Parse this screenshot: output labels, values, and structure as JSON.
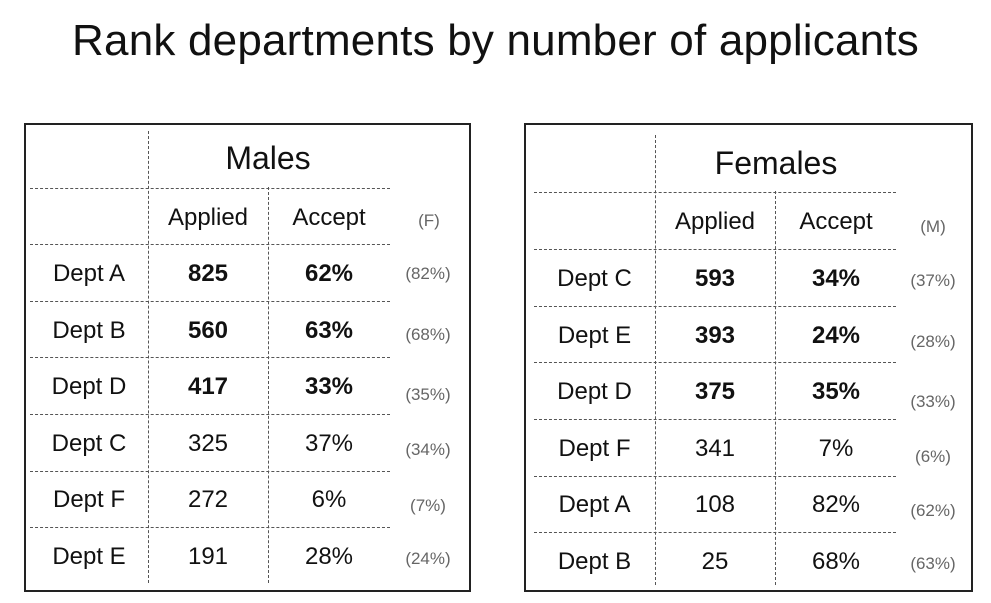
{
  "title": "Rank departments by number of applicants",
  "males": {
    "group_label": "Males",
    "col_applied": "Applied",
    "col_accept": "Accept",
    "col_other": "(F)",
    "rows": [
      {
        "dept": "Dept A",
        "applied": "825",
        "accept": "62%",
        "other": "(82%)",
        "bold": true
      },
      {
        "dept": "Dept B",
        "applied": "560",
        "accept": "63%",
        "other": "(68%)",
        "bold": true
      },
      {
        "dept": "Dept D",
        "applied": "417",
        "accept": "33%",
        "other": "(35%)",
        "bold": true
      },
      {
        "dept": "Dept C",
        "applied": "325",
        "accept": "37%",
        "other": "(34%)",
        "bold": false
      },
      {
        "dept": "Dept F",
        "applied": "272",
        "accept": "6%",
        "other": "(7%)",
        "bold": false
      },
      {
        "dept": "Dept E",
        "applied": "191",
        "accept": "28%",
        "other": "(24%)",
        "bold": false
      }
    ]
  },
  "females": {
    "group_label": "Females",
    "col_applied": "Applied",
    "col_accept": "Accept",
    "col_other": "(M)",
    "rows": [
      {
        "dept": "Dept C",
        "applied": "593",
        "accept": "34%",
        "other": "(37%)",
        "bold": true
      },
      {
        "dept": "Dept E",
        "applied": "393",
        "accept": "24%",
        "other": "(28%)",
        "bold": true
      },
      {
        "dept": "Dept D",
        "applied": "375",
        "accept": "35%",
        "other": "(33%)",
        "bold": true
      },
      {
        "dept": "Dept F",
        "applied": "341",
        "accept": "7%",
        "other": "(6%)",
        "bold": false
      },
      {
        "dept": "Dept A",
        "applied": "108",
        "accept": "82%",
        "other": "(62%)",
        "bold": false
      },
      {
        "dept": "Dept B",
        "applied": "25",
        "accept": "68%",
        "other": "(63%)",
        "bold": false
      }
    ]
  }
}
